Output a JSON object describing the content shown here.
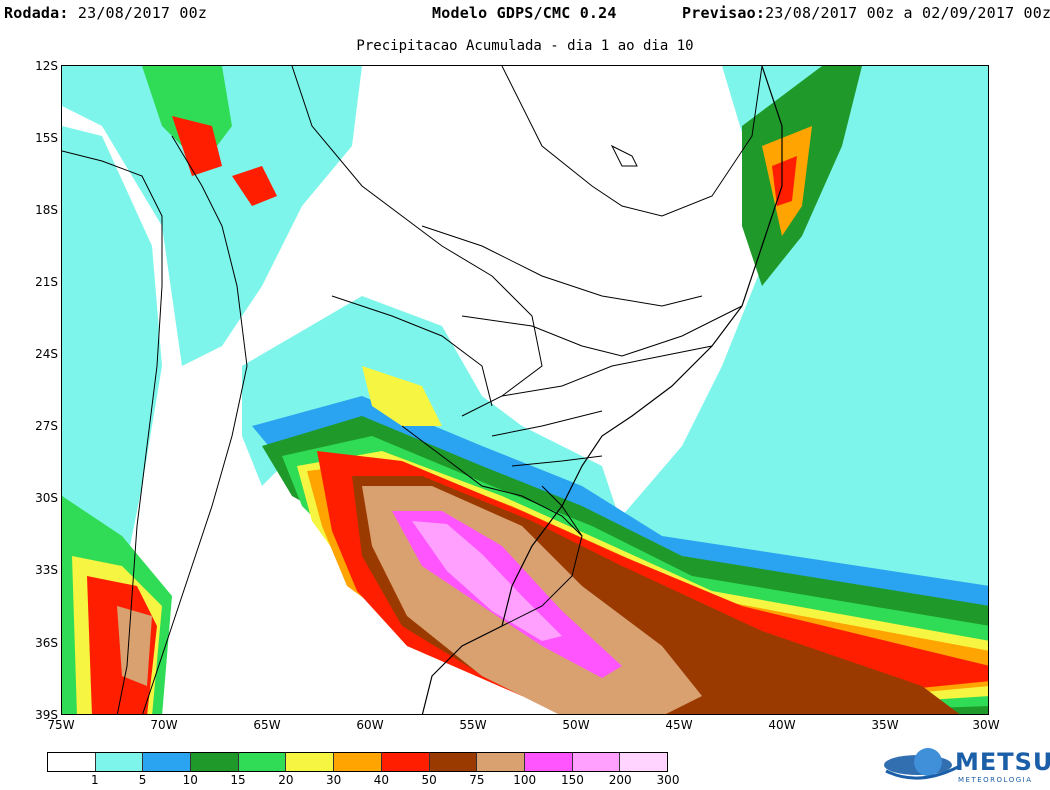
{
  "header": {
    "left_label": "Rodada:",
    "left_value": " 23/08/2017 00z",
    "center_label": "Modelo GDPS/CMC 0.24",
    "right_label": "Previsao:",
    "right_value": "23/08/2017 00z a 02/09/2017 00z"
  },
  "subtitle": "Precipitacao Acumulada - dia 1 ao dia 10",
  "map": {
    "lat_labels": [
      "12S",
      "15S",
      "18S",
      "21S",
      "24S",
      "27S",
      "30S",
      "33S",
      "36S",
      "39S"
    ],
    "lon_labels": [
      "75W",
      "70W",
      "65W",
      "60W",
      "55W",
      "50W",
      "45W",
      "40W",
      "35W",
      "30W"
    ]
  },
  "colorbar": {
    "colors": [
      "#ffffff",
      "#7ef5ea",
      "#2aa3f0",
      "#1f9a2a",
      "#30dc55",
      "#f5f542",
      "#ffa400",
      "#ff1f00",
      "#9b3a00",
      "#d9a070",
      "#ff55ff",
      "#ffa0ff",
      "#ffd4ff"
    ],
    "labels": [
      "1",
      "5",
      "10",
      "15",
      "20",
      "30",
      "40",
      "50",
      "75",
      "100",
      "150",
      "200",
      "300"
    ]
  },
  "logo": {
    "brand": "METSUL",
    "tagline": "METEOROLOGIA"
  }
}
